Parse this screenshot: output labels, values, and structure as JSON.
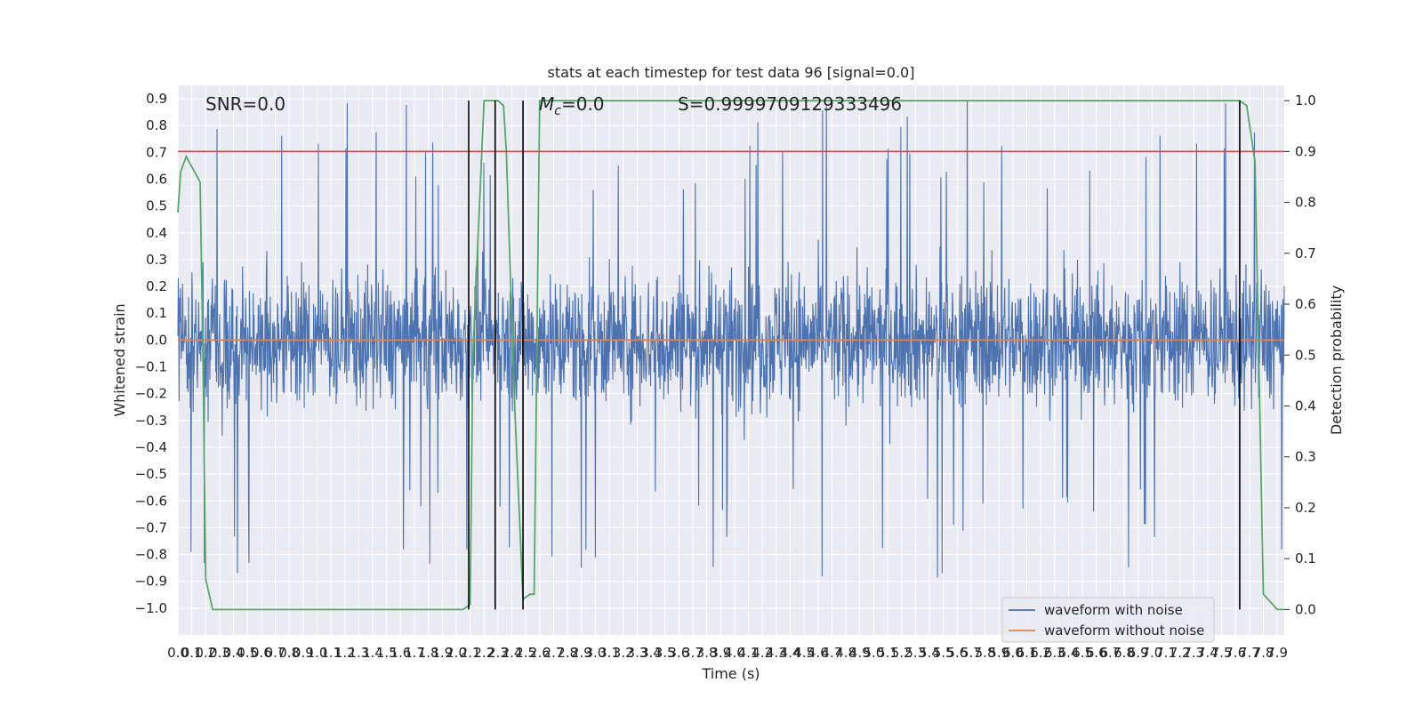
{
  "chart_data": {
    "type": "line",
    "title": "stats at each timestep for test data 96 [signal=0.0]",
    "xlabel": "Time (s)",
    "ylabel_left": "Whitened strain",
    "ylabel_right": "Detection probability",
    "xlim": [
      0.0,
      7.95
    ],
    "ylim_left": [
      -1.1,
      0.95
    ],
    "ylim_right": [
      -0.05,
      1.03
    ],
    "grid": true,
    "x_ticks": [
      "0.0",
      "0.1",
      "0.2",
      "0.3",
      "0.4",
      "0.5",
      "0.6",
      "0.7",
      "0.8",
      "0.9",
      "1.0",
      "1.1",
      "1.2",
      "1.3",
      "1.4",
      "1.5",
      "1.6",
      "1.7",
      "1.8",
      "1.9",
      "2.0",
      "2.1",
      "2.2",
      "2.3",
      "2.4",
      "2.5",
      "2.6",
      "2.7",
      "2.8",
      "2.9",
      "3.0",
      "3.1",
      "3.2",
      "3.3",
      "3.4",
      "3.5",
      "3.6",
      "3.7",
      "3.8",
      "3.9",
      "4.0",
      "4.1",
      "4.2",
      "4.3",
      "4.4",
      "4.5",
      "4.6",
      "4.7",
      "4.8",
      "4.9",
      "5.0",
      "5.1",
      "5.2",
      "5.3",
      "5.4",
      "5.5",
      "5.6",
      "5.7",
      "5.8",
      "5.9",
      "6.0",
      "6.1",
      "6.2",
      "6.3",
      "6.4",
      "6.5",
      "6.6",
      "6.7",
      "6.8",
      "6.9",
      "7.0",
      "7.1",
      "7.2",
      "7.3",
      "7.4",
      "7.5",
      "7.6",
      "7.7",
      "7.8",
      "7.9"
    ],
    "y_ticks_left": [
      "−1.0",
      "−0.9",
      "−0.8",
      "−0.7",
      "−0.6",
      "−0.5",
      "−0.4",
      "−0.3",
      "−0.2",
      "−0.1",
      "0.0",
      "0.1",
      "0.2",
      "0.3",
      "0.4",
      "0.5",
      "0.6",
      "0.7",
      "0.8",
      "0.9"
    ],
    "y_ticks_right": [
      "0.0",
      "0.1",
      "0.2",
      "0.3",
      "0.4",
      "0.5",
      "0.6",
      "0.7",
      "0.8",
      "0.9",
      "1.0"
    ],
    "annotations": {
      "snr": "SNR=0.0",
      "mc_symbol": "M",
      "mc_subscript": "c",
      "mc_value": "=0.0",
      "s": "S=0.9999709129333496"
    },
    "legend": {
      "placement": "lower-right",
      "entries": [
        {
          "label": "waveform with noise",
          "color": "#4c72b0"
        },
        {
          "label": "waveform without noise",
          "color": "#dd8452"
        }
      ]
    },
    "series": [
      {
        "name": "waveform with noise",
        "axis": "left",
        "color": "#4c72b0",
        "kind": "noise",
        "amplitude_typical": 0.42,
        "amplitude_peak": 0.9
      },
      {
        "name": "waveform without noise",
        "axis": "left",
        "color": "#dd8452",
        "x": [
          0.0,
          7.95
        ],
        "y": [
          0.0,
          0.0
        ]
      },
      {
        "axis": "right",
        "color": "#55a868",
        "x": [
          0.0,
          0.02,
          0.06,
          0.12,
          0.16,
          0.18,
          0.2,
          0.25,
          1.0,
          2.0,
          2.05,
          2.1,
          2.12,
          2.2,
          2.25,
          2.3,
          2.34,
          2.36,
          2.42,
          2.48,
          2.53,
          2.56,
          2.6,
          3.0,
          5.0,
          7.0,
          7.58,
          7.63,
          7.68,
          7.74,
          7.8,
          7.9,
          7.95
        ],
        "y": [
          0.78,
          0.86,
          0.89,
          0.86,
          0.84,
          0.5,
          0.06,
          0.0,
          0.0,
          0.0,
          0.0,
          0.01,
          0.5,
          1.0,
          1.0,
          1.0,
          0.99,
          0.9,
          0.4,
          0.02,
          0.03,
          0.03,
          1.0,
          1.0,
          1.0,
          1.0,
          1.0,
          1.0,
          0.99,
          0.88,
          0.03,
          0.0,
          0.0
        ]
      },
      {
        "axis": "right",
        "color": "#c44e52",
        "x": [
          0.0,
          7.95
        ],
        "y": [
          0.9,
          0.9
        ]
      }
    ],
    "vertical_markers": {
      "color": "#000000",
      "x": [
        2.09,
        2.28,
        2.48,
        7.63
      ],
      "y_range": [
        0.0,
        1.0
      ]
    }
  }
}
